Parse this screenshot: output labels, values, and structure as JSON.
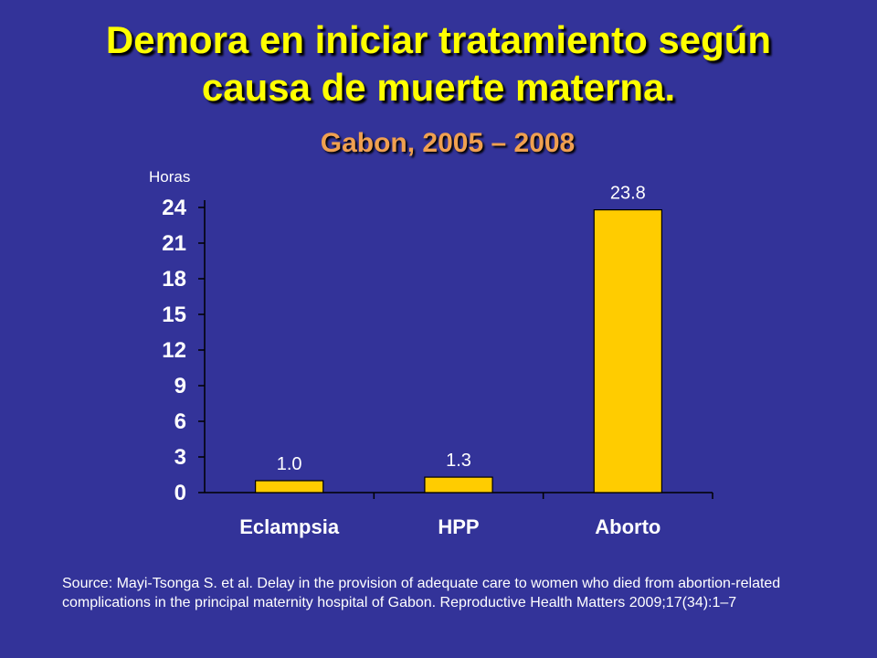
{
  "title_line1": "Demora en iniciar tratamiento según",
  "title_line2": "causa de muerte materna.",
  "subtitle": "Gabon, 2005 – 2008",
  "source": "Source: Mayi-Tsonga S. et al. Delay in the provision of adequate care to women who died from abortion-related complications in the principal maternity hospital of Gabon. Reproductive Health Matters 2009;17(34):1–7",
  "colors": {
    "background": "#333399",
    "title": "#ffff00",
    "subtitle": "#f0a050",
    "bar": "#ffcc00",
    "text": "#ffffff",
    "axis": "#000000"
  },
  "chart_data": {
    "type": "bar",
    "title": "",
    "xlabel": "",
    "ylabel": "Horas",
    "categories": [
      "Eclampsia",
      "HPP",
      "Aborto"
    ],
    "values": [
      1.0,
      1.3,
      23.8
    ],
    "data_labels": [
      "1.0",
      "1.3",
      "23.8"
    ],
    "ylim": [
      0,
      24
    ],
    "yticks": [
      0,
      3,
      6,
      9,
      12,
      15,
      18,
      21,
      24
    ],
    "grid": false,
    "legend": "none"
  }
}
